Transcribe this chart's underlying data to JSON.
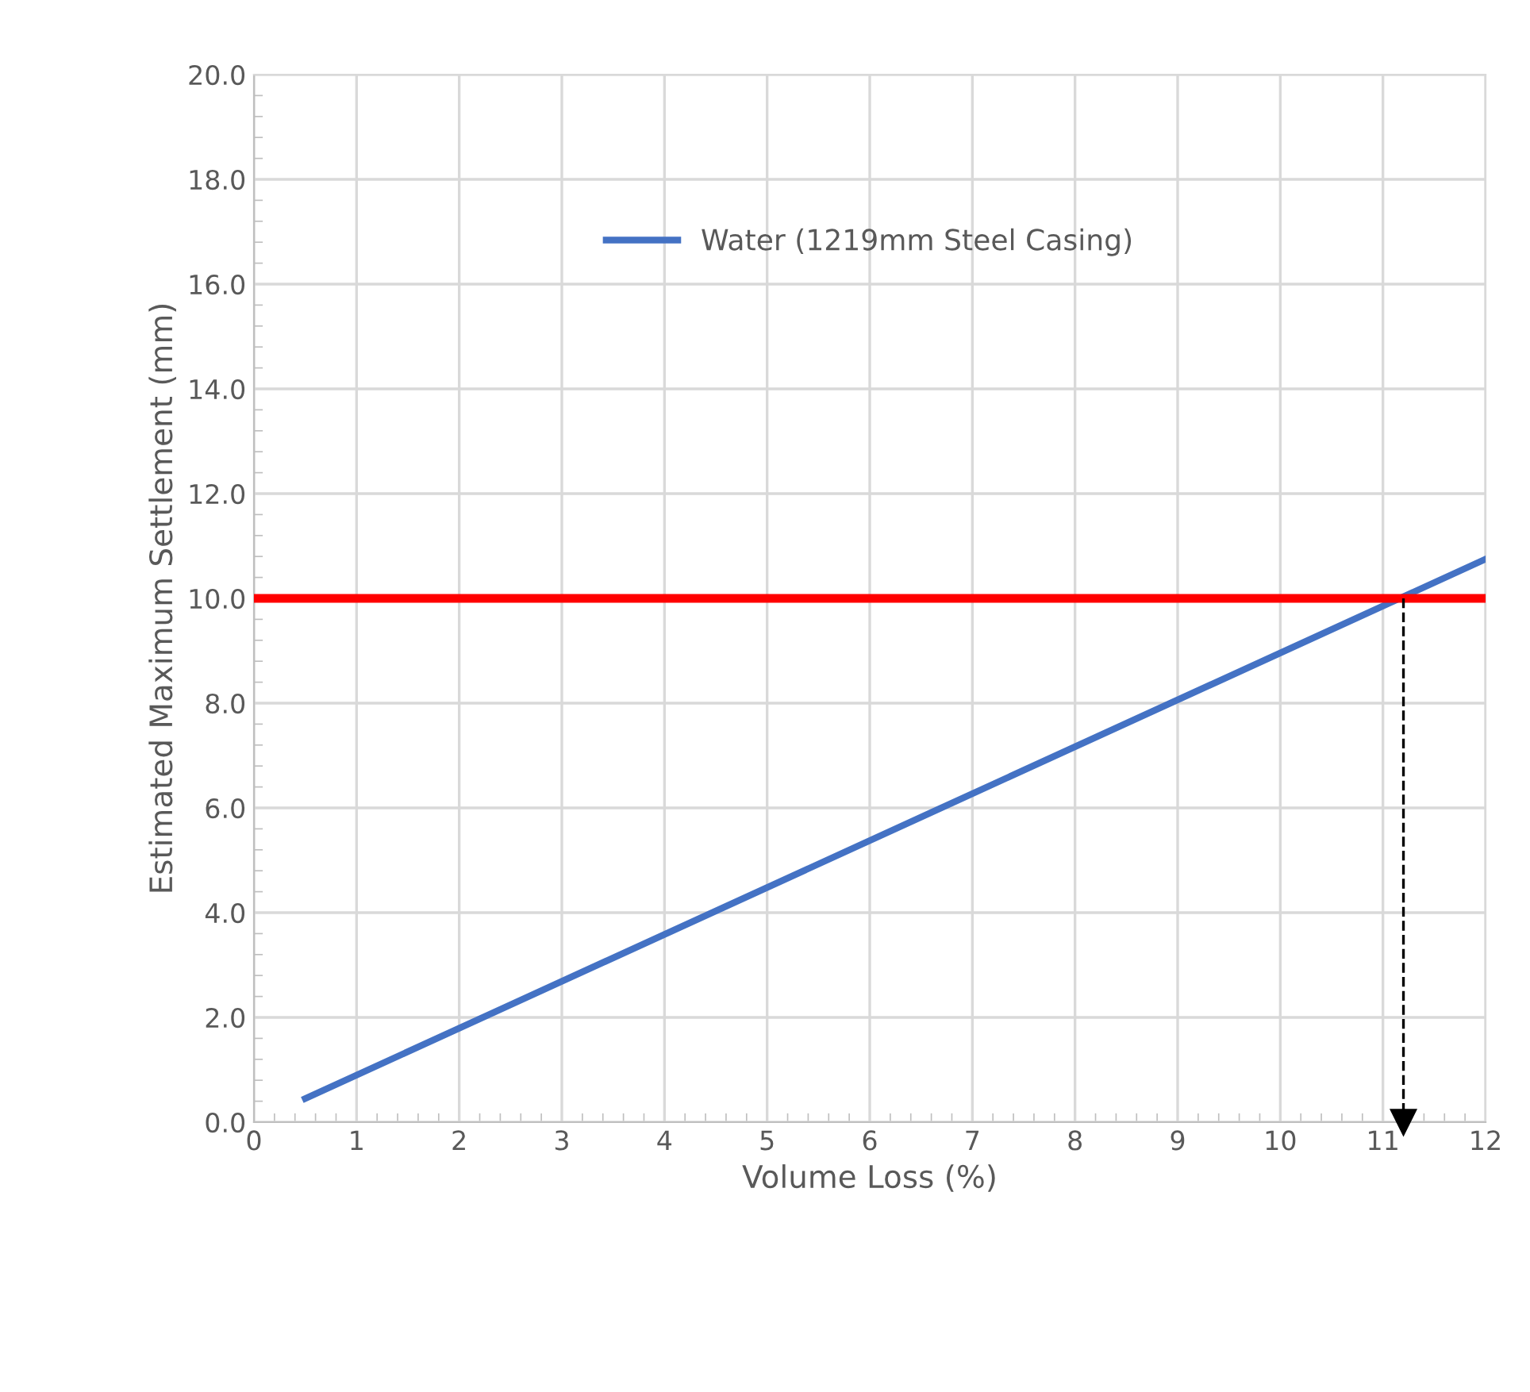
{
  "chart_data": {
    "type": "line",
    "xlabel": "Volume Loss (%)",
    "ylabel": "Estimated Maximum Settlement (mm)",
    "x": [
      0.5,
      12
    ],
    "series": [
      {
        "name": "Water (1219mm Steel Casing)",
        "color": "#4472c4",
        "values": [
          0.45,
          10.75
        ]
      }
    ],
    "xlim": [
      0,
      12
    ],
    "xticks": [
      0,
      1,
      2,
      3,
      4,
      5,
      6,
      7,
      8,
      9,
      10,
      11,
      12
    ],
    "ylim": [
      0,
      20
    ],
    "yticks": [
      {
        "value": 0,
        "label": "0.0"
      },
      {
        "value": 2,
        "label": "2.0"
      },
      {
        "value": 4,
        "label": "4.0"
      },
      {
        "value": 6,
        "label": "6.0"
      },
      {
        "value": 8,
        "label": "8.0"
      },
      {
        "value": 10,
        "label": "10.0"
      },
      {
        "value": 12,
        "label": "12.0"
      },
      {
        "value": 14,
        "label": "14.0"
      },
      {
        "value": 16,
        "label": "16.0"
      },
      {
        "value": 18,
        "label": "18.0"
      },
      {
        "value": 20,
        "label": "20.0"
      }
    ],
    "ref_lines": [
      {
        "axis": "y",
        "value": 10,
        "color": "#ff0000",
        "line_style": "solid"
      },
      {
        "axis": "x",
        "value": 11.2,
        "color": "#000000",
        "line_style": "dashed"
      }
    ],
    "grid": true,
    "legend": "top",
    "marker": "none",
    "line_style": "solid"
  }
}
